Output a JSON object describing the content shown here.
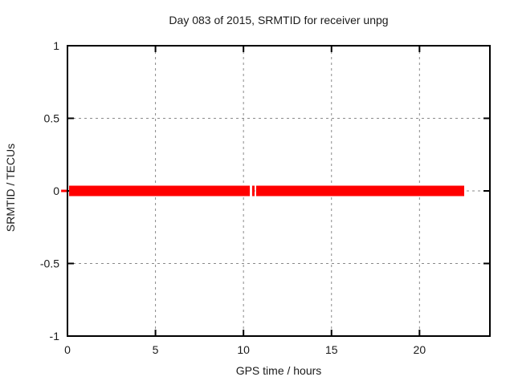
{
  "figure": {
    "title": "Day 083 of 2015, SRMTID for receiver unpg",
    "xlabel": "GPS time / hours",
    "ylabel": "SRMTID / TECUs"
  },
  "chart_data": {
    "type": "line",
    "title": "Day 083 of 2015, SRMTID for receiver unpg",
    "xlabel": "GPS time / hours",
    "ylabel": "SRMTID / TECUs",
    "xlim": [
      0,
      24
    ],
    "ylim": [
      -1,
      1
    ],
    "xticks": [
      0,
      5,
      10,
      15,
      20
    ],
    "xtick_labels": [
      "0",
      "5",
      "10",
      "15",
      "20"
    ],
    "yticks": [
      1,
      0.5,
      0,
      -0.5,
      -1
    ],
    "ytick_labels": [
      "1",
      "0.5",
      "0",
      "-0.5",
      "-1"
    ],
    "grid": true,
    "legend": "none",
    "series": [
      {
        "name": "SRMTID",
        "y_value": 0,
        "x_segments_hours": [
          [
            0.09,
            10.36
          ],
          [
            10.49,
            10.63
          ],
          [
            10.72,
            22.54
          ]
        ],
        "band_halfwidth_tecus": 0.036,
        "offscale_dash_hours": [
          -0.36,
          0.0
        ]
      }
    ],
    "colors": {
      "line": "#ff0000",
      "grid": "#8a8a8a",
      "axis": "#000000",
      "background": "#ffffff",
      "text": "#1a1a1a"
    }
  }
}
